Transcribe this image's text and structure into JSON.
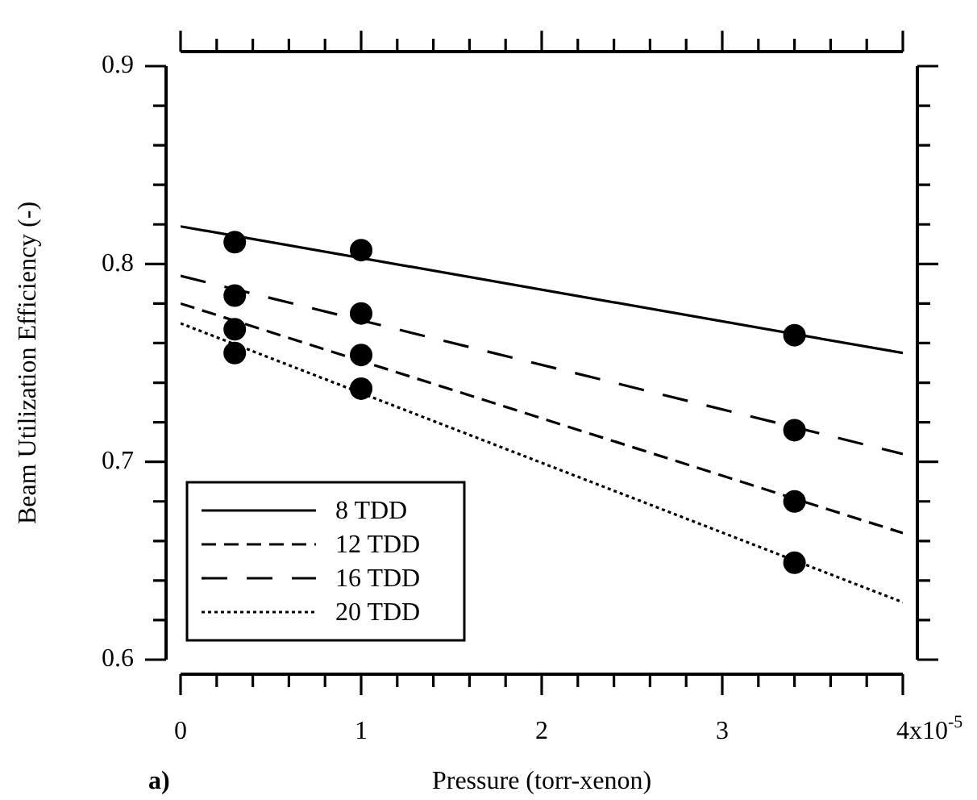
{
  "chart_data": {
    "type": "scatter",
    "xlabel": "Pressure (torr-xenon)",
    "ylabel": "Beam Utilization Efficiency (-)",
    "annotations": [
      "a)",
      "x10$^{-5}$"
    ],
    "xlim": [
      0,
      4
    ],
    "ylim": [
      0.6,
      0.9
    ],
    "xticks": [
      0,
      {
        "value": 0.2,
        "label": null
      },
      {
        "value": 0.4,
        "label": null
      },
      {
        "value": 0.6,
        "label": null
      },
      {
        "value": 0.8,
        "label": null
      },
      1,
      {
        "value": 1.2,
        "label": null
      },
      {
        "value": 1.4,
        "label": null
      },
      {
        "value": 1.6,
        "label": null
      },
      {
        "value": 1.8,
        "label": null
      },
      2,
      {
        "value": 2.2,
        "label": null
      },
      {
        "value": 2.4,
        "label": null
      },
      {
        "value": 2.6,
        "label": null
      },
      {
        "value": 2.8,
        "label": null
      },
      3,
      {
        "value": 3.2,
        "label": null
      },
      {
        "value": 3.4,
        "label": null
      },
      {
        "value": 3.6,
        "label": null
      },
      {
        "value": 3.8,
        "label": null
      },
      4
    ],
    "yticks": [
      0.6,
      {
        "value": 0.62,
        "label": null
      },
      {
        "value": 0.64,
        "label": null
      },
      {
        "value": 0.66,
        "label": null
      },
      {
        "value": 0.68,
        "label": null
      },
      0.7,
      {
        "value": 0.72,
        "label": null
      },
      {
        "value": 0.74,
        "label": null
      },
      {
        "value": 0.76,
        "label": null
      },
      {
        "value": 0.78,
        "label": null
      },
      0.8,
      {
        "value": 0.82,
        "label": null
      },
      {
        "value": 0.84,
        "label": null
      },
      {
        "value": 0.86,
        "label": null
      },
      {
        "value": 0.88,
        "label": null
      },
      0.9
    ],
    "legend": "bottom left",
    "series": [
      {
        "type": "line",
        "name": "8 TDD",
        "color": "#000000",
        "x": [
          0,
          4
        ],
        "values": [
          0.819,
          0.755
        ],
        "line_style": "solid",
        "marker": "none"
      },
      {
        "type": "line",
        "name": "12 TDD",
        "color": "#000000",
        "x": [
          0,
          4
        ],
        "values": [
          0.78,
          0.664
        ],
        "line_style": "dashed",
        "marker": "none"
      },
      {
        "type": "line",
        "name": "16 TDD",
        "color": "#000000",
        "x": [
          0,
          4
        ],
        "values": [
          0.794,
          0.704
        ],
        "line_style": "dashed",
        "marker": "none"
      },
      {
        "type": "line",
        "name": "20 TDD",
        "color": "#000000",
        "x": [
          0,
          4
        ],
        "values": [
          0.77,
          0.629
        ],
        "line_style": "dotted",
        "marker": "none"
      },
      {
        "color": "#000000",
        "x": [
          0.3,
          1,
          3.4
        ],
        "values": [
          0.811,
          0.807,
          0.764
        ],
        "marker": "circle"
      },
      {
        "color": "#000000",
        "x": [
          0.3,
          1,
          3.4
        ],
        "values": [
          0.767,
          0.754,
          0.68
        ],
        "marker": "circle"
      },
      {
        "color": "#000000",
        "x": [
          0.3,
          1,
          3.4
        ],
        "values": [
          0.784,
          0.775,
          0.716
        ],
        "marker": "circle"
      },
      {
        "color": "#000000",
        "x": [
          0.3,
          1,
          3.4
        ],
        "values": [
          0.755,
          0.737,
          0.649
        ],
        "marker": "circle"
      }
    ]
  }
}
